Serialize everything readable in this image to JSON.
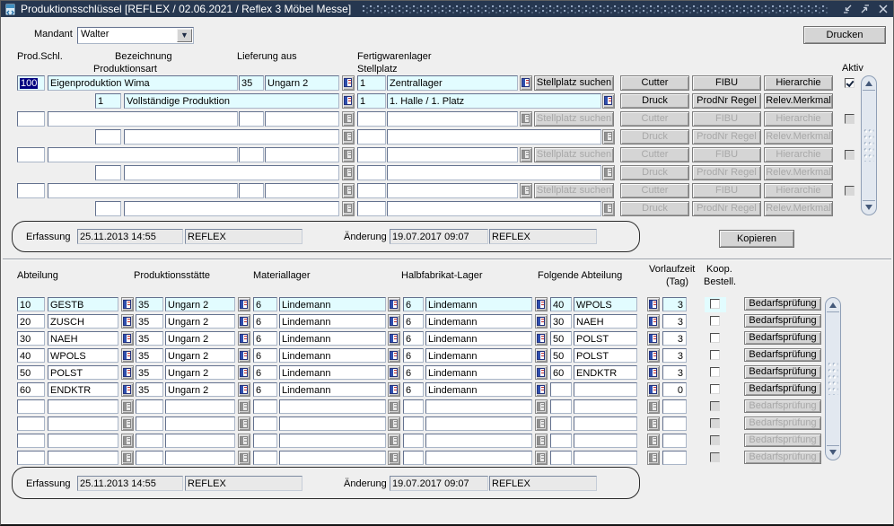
{
  "window": {
    "title": "Produktionsschlüssel   [REFLEX / 02.06.2021 / Reflex 3 Möbel Messe]"
  },
  "toolbar": {
    "mandant_label": "Mandant",
    "mandant_value": "Walter",
    "drucken": "Drucken",
    "kopieren": "Kopieren"
  },
  "upper": {
    "headers": {
      "prod_schl": "Prod.Schl.",
      "bezeichnung": "Bezeichnung",
      "produktionsart": "Produktionsart",
      "lieferung_aus": "Lieferung aus",
      "fertigwarenlager": "Fertigwarenlager",
      "stellplatz": "Stellplatz",
      "aktiv": "Aktiv"
    },
    "buttons": {
      "stellplatz_suchen": "Stellplatz suchen",
      "cutter": "Cutter",
      "fibu": "FIBU",
      "hierarchie": "Hierarchie",
      "druck": "Druck",
      "prodnr_regel": "ProdNr Regel",
      "relev_merkmal": "Relev.Merkmal"
    },
    "records": [
      {
        "prod_schl": "100",
        "bezeichnung": "Eigenproduktion Wima",
        "lief_nr": "35",
        "lief_name": "Ungarn 2",
        "stell_nr": "1",
        "stell_name": "Zentrallager",
        "pa_nr": "1",
        "pa_name": "Vollständige Produktion",
        "stell2_nr": "1",
        "stell2_name": "1. Halle / 1. Platz",
        "aktiv": true,
        "selected": true,
        "current": true,
        "disabled": false
      },
      {
        "prod_schl": "",
        "bezeichnung": "",
        "lief_nr": "",
        "lief_name": "",
        "stell_nr": "",
        "stell_name": "",
        "pa_nr": "",
        "pa_name": "",
        "stell2_nr": "",
        "stell2_name": "",
        "aktiv": false,
        "selected": false,
        "current": false,
        "disabled": true
      },
      {
        "prod_schl": "",
        "bezeichnung": "",
        "lief_nr": "",
        "lief_name": "",
        "stell_nr": "",
        "stell_name": "",
        "pa_nr": "",
        "pa_name": "",
        "stell2_nr": "",
        "stell2_name": "",
        "aktiv": false,
        "selected": false,
        "current": false,
        "disabled": true
      },
      {
        "prod_schl": "",
        "bezeichnung": "",
        "lief_nr": "",
        "lief_name": "",
        "stell_nr": "",
        "stell_name": "",
        "pa_nr": "",
        "pa_name": "",
        "stell2_nr": "",
        "stell2_name": "",
        "aktiv": false,
        "selected": false,
        "current": false,
        "disabled": true
      }
    ]
  },
  "erfassung_upper": {
    "erfassung_label": "Erfassung",
    "erfassung_datetime": "25.11.2013 14:55",
    "erfassung_user": "REFLEX",
    "aenderung_label": "Änderung",
    "aenderung_datetime": "19.07.2017 09:07",
    "aenderung_user": "REFLEX"
  },
  "lower": {
    "headers": {
      "abteilung": "Abteilung",
      "produktionsstaette": "Produktionsstätte",
      "materiallager": "Materiallager",
      "halbfabrikat": "Halbfabrikat-Lager",
      "folgende": "Folgende Abteilung",
      "vorlaufzeit_line1": "Vorlaufzeit",
      "vorlaufzeit_line2": "(Tag)",
      "koop_line1": "Koop.",
      "koop_line2": "Bestell."
    },
    "button": "Bedarfsprüfung",
    "rows": [
      {
        "abt_nr": "10",
        "abt_name": "GESTB",
        "prod_nr": "35",
        "prod_name": "Ungarn 2",
        "mat_nr": "6",
        "mat_name": "Lindemann",
        "halb_nr": "6",
        "halb_name": "Lindemann",
        "folg_nr": "40",
        "folg_name": "WPOLS",
        "vorlauf": "3",
        "koop": false,
        "current": true,
        "disabled": false
      },
      {
        "abt_nr": "20",
        "abt_name": "ZUSCH",
        "prod_nr": "35",
        "prod_name": "Ungarn 2",
        "mat_nr": "6",
        "mat_name": "Lindemann",
        "halb_nr": "6",
        "halb_name": "Lindemann",
        "folg_nr": "30",
        "folg_name": "NAEH",
        "vorlauf": "3",
        "koop": false,
        "current": false,
        "disabled": false
      },
      {
        "abt_nr": "30",
        "abt_name": "NAEH",
        "prod_nr": "35",
        "prod_name": "Ungarn 2",
        "mat_nr": "6",
        "mat_name": "Lindemann",
        "halb_nr": "6",
        "halb_name": "Lindemann",
        "folg_nr": "50",
        "folg_name": "POLST",
        "vorlauf": "3",
        "koop": false,
        "current": false,
        "disabled": false
      },
      {
        "abt_nr": "40",
        "abt_name": "WPOLS",
        "prod_nr": "35",
        "prod_name": "Ungarn 2",
        "mat_nr": "6",
        "mat_name": "Lindemann",
        "halb_nr": "6",
        "halb_name": "Lindemann",
        "folg_nr": "50",
        "folg_name": "POLST",
        "vorlauf": "3",
        "koop": false,
        "current": false,
        "disabled": false
      },
      {
        "abt_nr": "50",
        "abt_name": "POLST",
        "prod_nr": "35",
        "prod_name": "Ungarn 2",
        "mat_nr": "6",
        "mat_name": "Lindemann",
        "halb_nr": "6",
        "halb_name": "Lindemann",
        "folg_nr": "60",
        "folg_name": "ENDKTR",
        "vorlauf": "3",
        "koop": false,
        "current": false,
        "disabled": false
      },
      {
        "abt_nr": "60",
        "abt_name": "ENDKTR",
        "prod_nr": "35",
        "prod_name": "Ungarn 2",
        "mat_nr": "6",
        "mat_name": "Lindemann",
        "halb_nr": "6",
        "halb_name": "Lindemann",
        "folg_nr": "",
        "folg_name": "",
        "vorlauf": "0",
        "koop": false,
        "current": false,
        "disabled": false
      },
      {
        "abt_nr": "",
        "abt_name": "",
        "prod_nr": "",
        "prod_name": "",
        "mat_nr": "",
        "mat_name": "",
        "halb_nr": "",
        "halb_name": "",
        "folg_nr": "",
        "folg_name": "",
        "vorlauf": "",
        "koop": false,
        "current": false,
        "disabled": true
      },
      {
        "abt_nr": "",
        "abt_name": "",
        "prod_nr": "",
        "prod_name": "",
        "mat_nr": "",
        "mat_name": "",
        "halb_nr": "",
        "halb_name": "",
        "folg_nr": "",
        "folg_name": "",
        "vorlauf": "",
        "koop": false,
        "current": false,
        "disabled": true
      },
      {
        "abt_nr": "",
        "abt_name": "",
        "prod_nr": "",
        "prod_name": "",
        "mat_nr": "",
        "mat_name": "",
        "halb_nr": "",
        "halb_name": "",
        "folg_nr": "",
        "folg_name": "",
        "vorlauf": "",
        "koop": false,
        "current": false,
        "disabled": true
      },
      {
        "abt_nr": "",
        "abt_name": "",
        "prod_nr": "",
        "prod_name": "",
        "mat_nr": "",
        "mat_name": "",
        "halb_nr": "",
        "halb_name": "",
        "folg_nr": "",
        "folg_name": "",
        "vorlauf": "",
        "koop": false,
        "current": false,
        "disabled": true
      }
    ]
  },
  "erfassung_lower": {
    "erfassung_label": "Erfassung",
    "erfassung_datetime": "25.11.2013 14:55",
    "erfassung_user": "REFLEX",
    "aenderung_label": "Änderung",
    "aenderung_datetime": "19.07.2017 09:07",
    "aenderung_user": "REFLEX"
  }
}
